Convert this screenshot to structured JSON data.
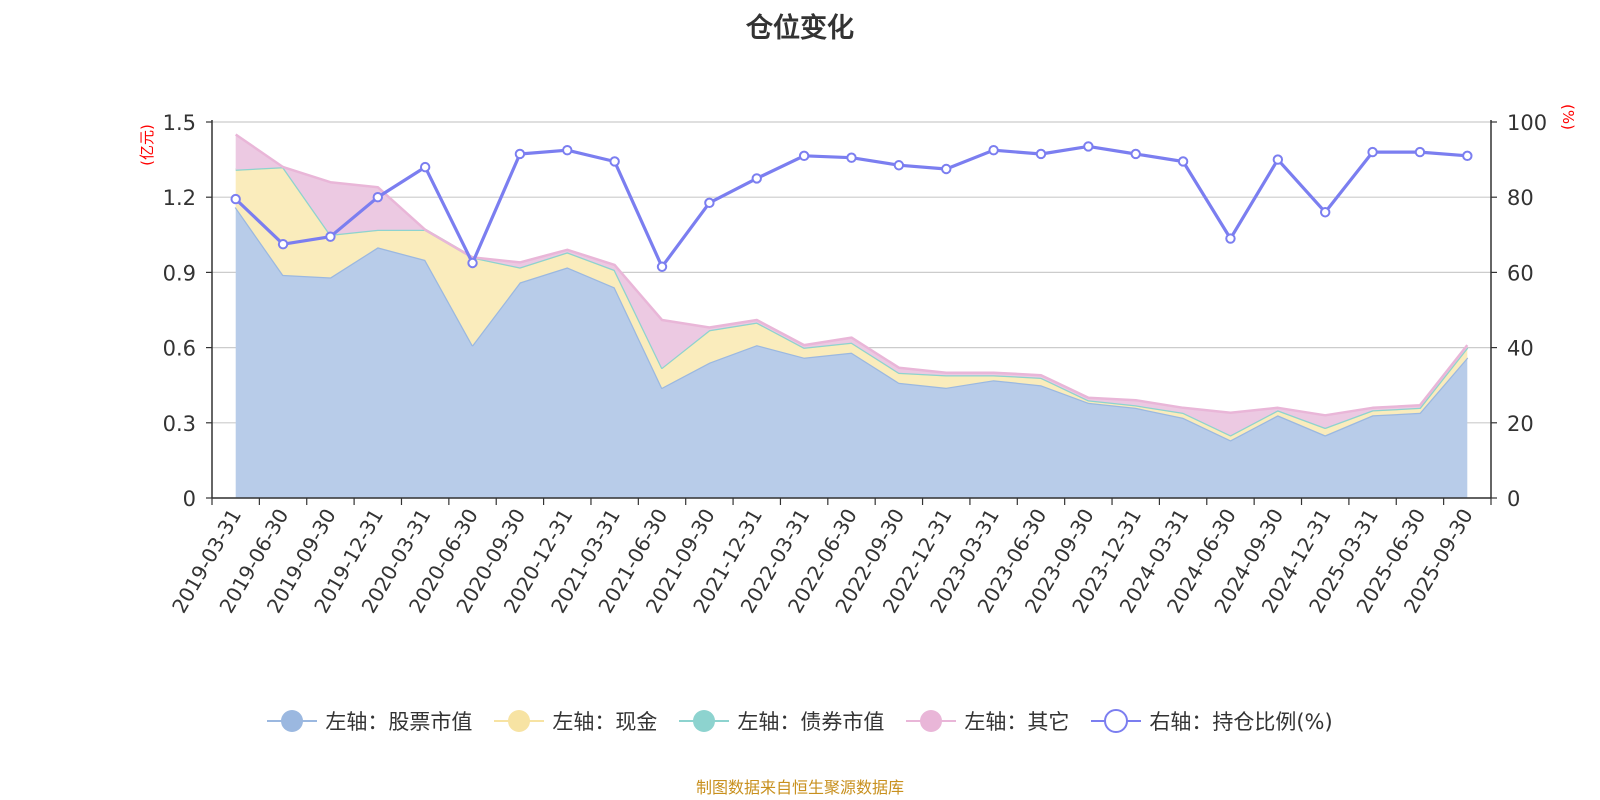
{
  "chart_data": {
    "type": "area",
    "title": "仓位变化",
    "left_axis_label": "(亿元)",
    "right_axis_label": "(%)",
    "left_ylim": [
      0,
      1.5
    ],
    "left_ticks": [
      "0",
      "0.3",
      "0.6",
      "0.9",
      "1.2",
      "1.5"
    ],
    "right_ylim": [
      0,
      100
    ],
    "right_ticks": [
      "0",
      "20",
      "40",
      "60",
      "80",
      "100"
    ],
    "grid": true,
    "stacked": true,
    "categories": [
      "2019-03-31",
      "2019-06-30",
      "2019-09-30",
      "2019-12-31",
      "2020-03-31",
      "2020-06-30",
      "2020-09-30",
      "2020-12-31",
      "2021-03-31",
      "2021-06-30",
      "2021-09-30",
      "2021-12-31",
      "2022-03-31",
      "2022-06-30",
      "2022-09-30",
      "2022-12-31",
      "2023-03-31",
      "2023-06-30",
      "2023-09-30",
      "2023-12-31",
      "2024-03-31",
      "2024-06-30",
      "2024-09-30",
      "2024-12-31",
      "2025-03-31",
      "2025-06-30",
      "2025-09-30"
    ],
    "series": [
      {
        "name": "左轴：股票市值",
        "axis": "left",
        "kind": "stacked-area",
        "color": "#9bb8e0",
        "fill": "#b8cce9",
        "values": [
          1.16,
          0.89,
          0.88,
          1.0,
          0.95,
          0.61,
          0.86,
          0.92,
          0.84,
          0.44,
          0.54,
          0.61,
          0.56,
          0.58,
          0.46,
          0.44,
          0.47,
          0.45,
          0.38,
          0.36,
          0.32,
          0.23,
          0.33,
          0.25,
          0.33,
          0.34,
          0.56
        ]
      },
      {
        "name": "左轴：现金",
        "axis": "left",
        "kind": "stacked-area",
        "color": "#f7e3a3",
        "fill": "#faecbc",
        "values": [
          0.15,
          0.43,
          0.17,
          0.07,
          0.12,
          0.35,
          0.06,
          0.06,
          0.07,
          0.08,
          0.13,
          0.09,
          0.04,
          0.04,
          0.04,
          0.05,
          0.02,
          0.03,
          0.01,
          0.01,
          0.02,
          0.02,
          0.02,
          0.03,
          0.02,
          0.02,
          0.04
        ]
      },
      {
        "name": "左轴：债券市值",
        "axis": "left",
        "kind": "stacked-area",
        "color": "#8dd3cf",
        "fill": "#b4e3e0",
        "values": [
          0,
          0,
          0,
          0,
          0,
          0,
          0,
          0,
          0,
          0,
          0,
          0,
          0,
          0,
          0,
          0,
          0,
          0,
          0,
          0,
          0,
          0,
          0,
          0,
          0,
          0,
          0
        ]
      },
      {
        "name": "左轴：其它",
        "axis": "left",
        "kind": "stacked-area",
        "color": "#e9b6d8",
        "fill": "#ecc9e2",
        "values": [
          0.14,
          0.0,
          0.21,
          0.17,
          0.0,
          0.0,
          0.02,
          0.01,
          0.02,
          0.19,
          0.01,
          0.01,
          0.01,
          0.02,
          0.02,
          0.01,
          0.01,
          0.01,
          0.01,
          0.02,
          0.02,
          0.09,
          0.01,
          0.05,
          0.01,
          0.01,
          0.01
        ]
      },
      {
        "name": "右轴：持仓比例(%)",
        "axis": "right",
        "kind": "line",
        "color": "#7b7ef0",
        "values": [
          79.5,
          67.5,
          69.5,
          80.0,
          88.0,
          62.5,
          91.5,
          92.5,
          89.5,
          61.5,
          78.5,
          85.0,
          91.0,
          90.5,
          88.5,
          87.5,
          92.5,
          91.5,
          93.5,
          91.5,
          89.5,
          69.0,
          90.0,
          76.0,
          92.0,
          92.0,
          91.0
        ]
      }
    ],
    "legend_position": "bottom"
  },
  "footer": {
    "source": "制图数据来自恒生聚源数据库"
  }
}
